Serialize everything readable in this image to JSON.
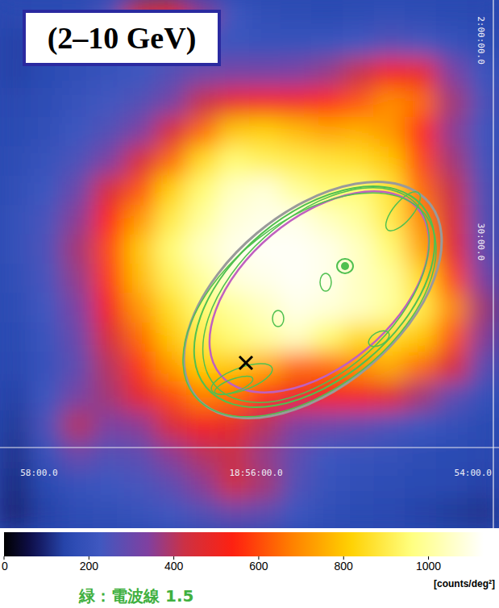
{
  "chart_data": {
    "type": "heatmap",
    "title": "(2–10 GeV)",
    "xlim": [
      58.36,
      53.76
    ],
    "ylim": [
      0.79,
      2.1
    ],
    "xticks": [
      {
        "value": 58,
        "label": "58:00.0"
      },
      {
        "value": 56,
        "label": "18:56:00.0"
      },
      {
        "value": 54,
        "label": "54:00.0"
      }
    ],
    "yticks": [
      {
        "value": 2.0,
        "label": "2:00:00.0"
      },
      {
        "value": 1.5,
        "label": "30:00.0"
      }
    ],
    "cells": [
      [
        150,
        160,
        170,
        250,
        450,
        500,
        350,
        220,
        180,
        170,
        160,
        170,
        180,
        170,
        160,
        150
      ],
      [
        140,
        150,
        170,
        200,
        230,
        250,
        230,
        210,
        200,
        200,
        210,
        230,
        260,
        240,
        200,
        170
      ],
      [
        140,
        160,
        180,
        200,
        220,
        260,
        300,
        320,
        320,
        330,
        360,
        420,
        520,
        500,
        330,
        220
      ],
      [
        150,
        170,
        200,
        230,
        260,
        320,
        420,
        500,
        520,
        520,
        560,
        620,
        700,
        650,
        380,
        250
      ],
      [
        160,
        180,
        220,
        260,
        330,
        450,
        650,
        800,
        820,
        780,
        740,
        760,
        720,
        560,
        350,
        230
      ],
      [
        170,
        200,
        250,
        330,
        450,
        650,
        850,
        950,
        920,
        900,
        880,
        860,
        800,
        600,
        380,
        240
      ],
      [
        180,
        220,
        300,
        450,
        620,
        820,
        950,
        1050,
        1080,
        1000,
        950,
        950,
        880,
        650,
        420,
        260
      ],
      [
        190,
        240,
        350,
        550,
        720,
        900,
        1000,
        1080,
        1100,
        1100,
        1050,
        1000,
        900,
        700,
        450,
        270
      ],
      [
        190,
        250,
        380,
        600,
        800,
        950,
        1050,
        1100,
        1120,
        1120,
        1100,
        1050,
        950,
        750,
        480,
        280
      ],
      [
        180,
        240,
        360,
        580,
        780,
        920,
        1000,
        1080,
        1100,
        1120,
        1100,
        1050,
        1000,
        850,
        600,
        330
      ],
      [
        170,
        230,
        330,
        520,
        720,
        860,
        950,
        1000,
        1050,
        1100,
        1080,
        1050,
        1000,
        900,
        700,
        380
      ],
      [
        160,
        210,
        300,
        450,
        650,
        800,
        900,
        950,
        1000,
        1050,
        950,
        850,
        850,
        800,
        620,
        350
      ],
      [
        150,
        200,
        280,
        400,
        580,
        720,
        820,
        800,
        750,
        650,
        650,
        700,
        750,
        650,
        450,
        280
      ],
      [
        140,
        220,
        320,
        380,
        480,
        600,
        680,
        650,
        560,
        500,
        520,
        520,
        480,
        380,
        280,
        200
      ],
      [
        130,
        250,
        400,
        330,
        350,
        450,
        520,
        480,
        400,
        330,
        300,
        280,
        250,
        220,
        190,
        160
      ],
      [
        120,
        200,
        300,
        260,
        280,
        350,
        400,
        420,
        360,
        280,
        220,
        200,
        190,
        170,
        160,
        150
      ],
      [
        110,
        160,
        200,
        220,
        240,
        280,
        350,
        430,
        380,
        260,
        200,
        180,
        170,
        160,
        150,
        140
      ],
      [
        100,
        140,
        170,
        180,
        200,
        230,
        260,
        300,
        280,
        220,
        180,
        160,
        150,
        140,
        130,
        120
      ]
    ],
    "colorbar": {
      "range": [
        0,
        1130
      ],
      "ticks": [
        0,
        200,
        400,
        600,
        800,
        1000
      ],
      "label": "[counts/deg²]"
    },
    "annotation": "緑：電波線 1.5"
  }
}
